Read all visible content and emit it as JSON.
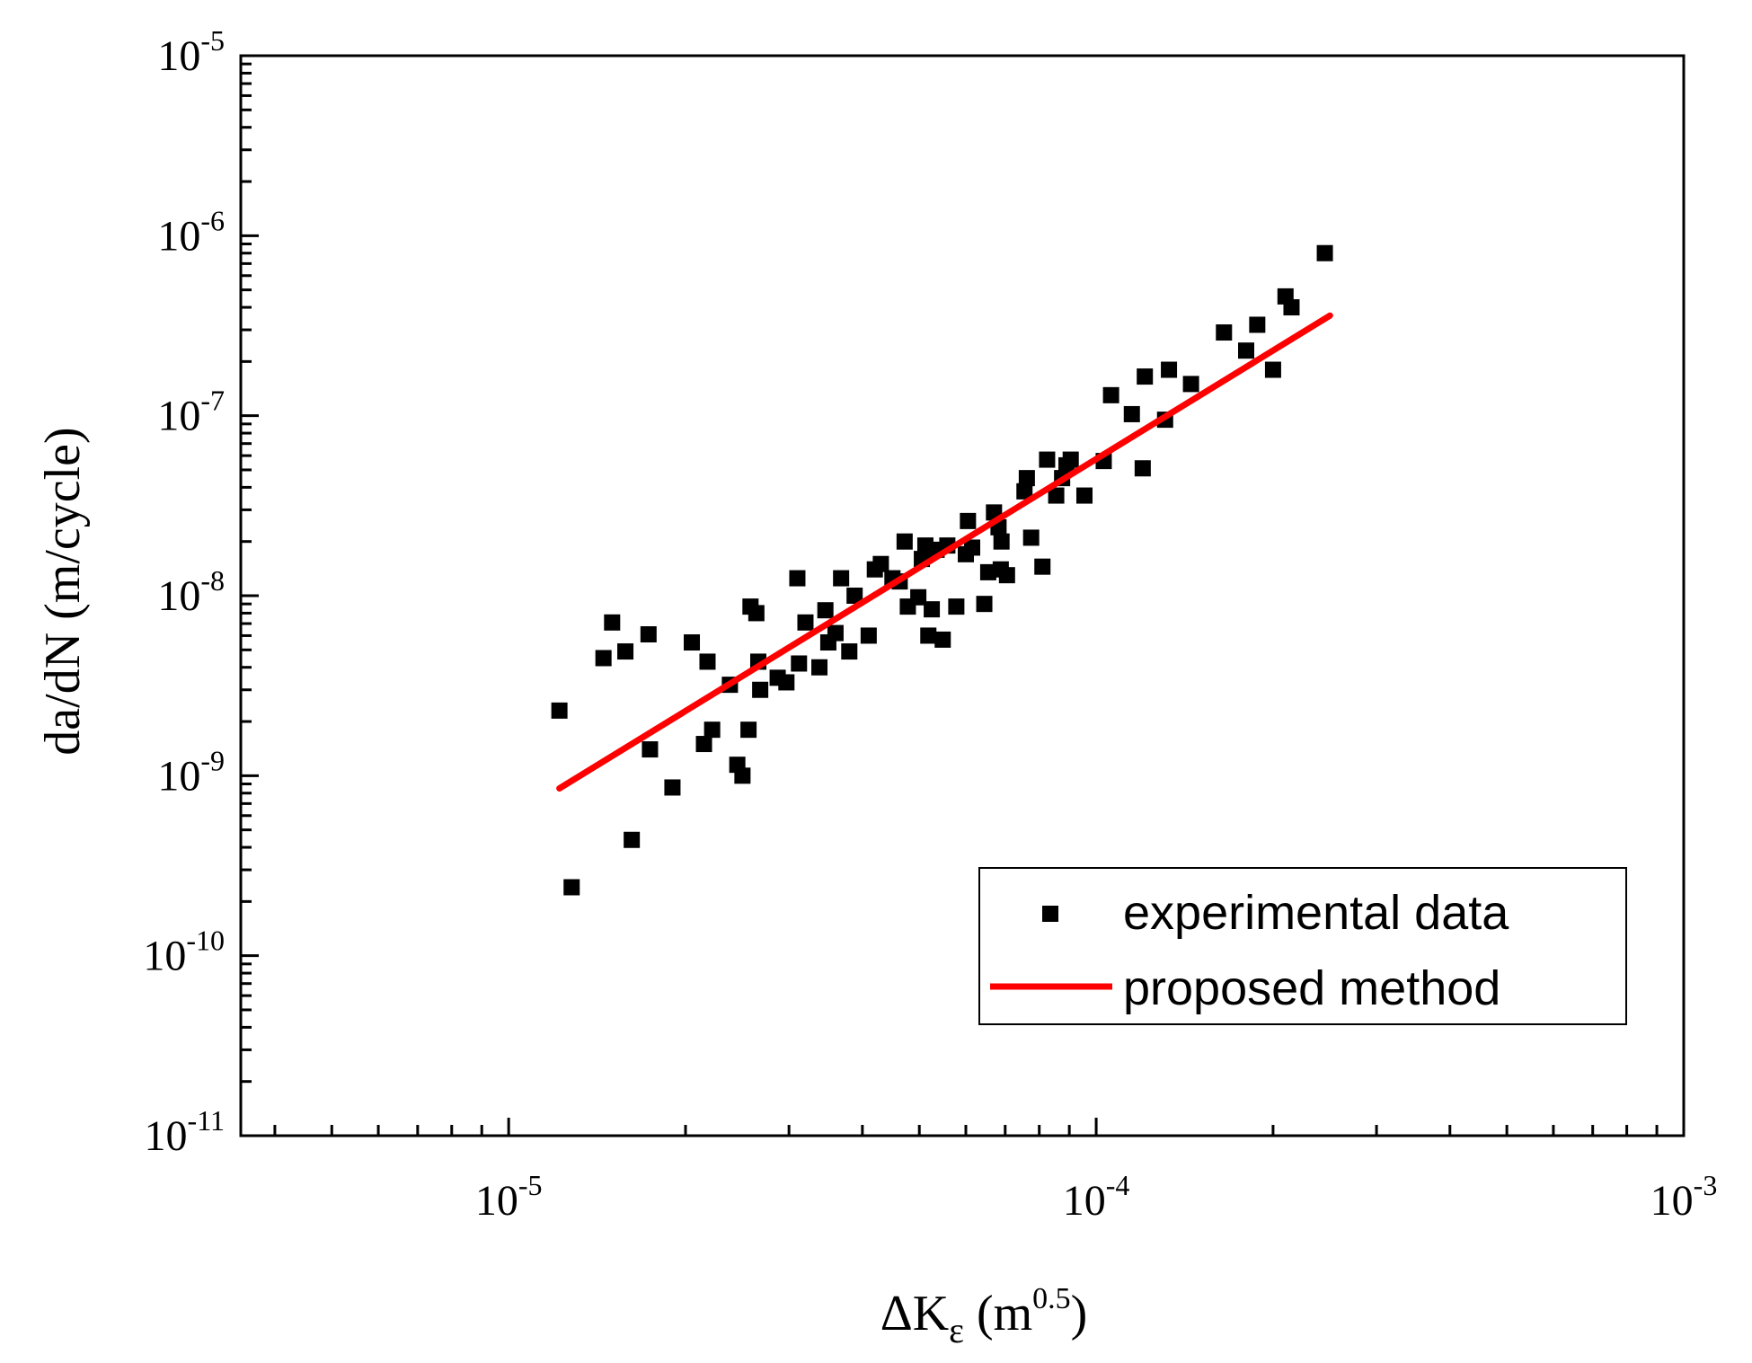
{
  "chart_data": {
    "type": "scatter",
    "title": "",
    "x_scale": "log",
    "y_scale": "log",
    "xlim": [
      3.5e-06,
      0.001
    ],
    "ylim": [
      1e-11,
      1e-05
    ],
    "xlabel": {
      "base": "ΔK",
      "subscript": "ε",
      "unit_open": " (m",
      "unit_sup": "0.5",
      "unit_close": ")"
    },
    "ylabel": "da/dN (m/cycle)",
    "x_ticks": [
      {
        "value": 1e-05,
        "base": "10",
        "exp": "-5"
      },
      {
        "value": 0.0001,
        "base": "10",
        "exp": "-4"
      },
      {
        "value": 0.001,
        "base": "10",
        "exp": "-3"
      }
    ],
    "y_ticks": [
      {
        "value": 1e-11,
        "base": "10",
        "exp": "-11"
      },
      {
        "value": 1e-10,
        "base": "10",
        "exp": "-10"
      },
      {
        "value": 1e-09,
        "base": "10",
        "exp": "-9"
      },
      {
        "value": 1e-08,
        "base": "10",
        "exp": "-8"
      },
      {
        "value": 1e-07,
        "base": "10",
        "exp": "-7"
      },
      {
        "value": 1e-06,
        "base": "10",
        "exp": "-6"
      },
      {
        "value": 1e-05,
        "base": "10",
        "exp": "-5"
      }
    ],
    "legend": {
      "position": "bottom-right",
      "entries": [
        {
          "label": "experimental data",
          "marker": "square",
          "color": "#000000"
        },
        {
          "label": "proposed method",
          "marker": "line",
          "color": "#ff0000"
        }
      ]
    },
    "series": [
      {
        "name": "experimental data",
        "kind": "scatter",
        "color": "#000000",
        "points": [
          [
            1.22e-05,
            2.3e-09
          ],
          [
            1.28e-05,
            2.4e-10
          ],
          [
            1.45e-05,
            4.5e-09
          ],
          [
            1.5e-05,
            7.1e-09
          ],
          [
            1.58e-05,
            4.9e-09
          ],
          [
            1.62e-05,
            4.4e-10
          ],
          [
            1.73e-05,
            6.1e-09
          ],
          [
            1.74e-05,
            1.4e-09
          ],
          [
            1.9e-05,
            8.6e-10
          ],
          [
            2.05e-05,
            5.5e-09
          ],
          [
            2.15e-05,
            1.5e-09
          ],
          [
            2.18e-05,
            4.3e-09
          ],
          [
            2.22e-05,
            1.8e-09
          ],
          [
            2.38e-05,
            3.2e-09
          ],
          [
            2.45e-05,
            1.15e-09
          ],
          [
            2.5e-05,
            1e-09
          ],
          [
            2.56e-05,
            1.8e-09
          ],
          [
            2.58e-05,
            8.7e-09
          ],
          [
            2.64e-05,
            8e-09
          ],
          [
            2.66e-05,
            4.3e-09
          ],
          [
            2.68e-05,
            3e-09
          ],
          [
            2.87e-05,
            3.5e-09
          ],
          [
            2.97e-05,
            3.3e-09
          ],
          [
            3.1e-05,
            1.25e-08
          ],
          [
            3.12e-05,
            4.2e-09
          ],
          [
            3.2e-05,
            7.1e-09
          ],
          [
            3.38e-05,
            4e-09
          ],
          [
            3.46e-05,
            8.3e-09
          ],
          [
            3.5e-05,
            5.5e-09
          ],
          [
            3.6e-05,
            6.2e-09
          ],
          [
            3.68e-05,
            1.25e-08
          ],
          [
            3.8e-05,
            4.9e-09
          ],
          [
            3.88e-05,
            1e-08
          ],
          [
            4.1e-05,
            6e-09
          ],
          [
            4.2e-05,
            1.4e-08
          ],
          [
            4.3e-05,
            1.5e-08
          ],
          [
            4.5e-05,
            1.25e-08
          ],
          [
            4.63e-05,
            1.2e-08
          ],
          [
            4.72e-05,
            2e-08
          ],
          [
            4.78e-05,
            8.7e-09
          ],
          [
            4.98e-05,
            9.8e-09
          ],
          [
            5.05e-05,
            1.6e-08
          ],
          [
            5.12e-05,
            1.9e-08
          ],
          [
            5.18e-05,
            6e-09
          ],
          [
            5.25e-05,
            8.4e-09
          ],
          [
            5.35e-05,
            1.8e-08
          ],
          [
            5.48e-05,
            5.7e-09
          ],
          [
            5.58e-05,
            1.9e-08
          ],
          [
            5.78e-05,
            8.7e-09
          ],
          [
            6e-05,
            1.7e-08
          ],
          [
            6.05e-05,
            2.6e-08
          ],
          [
            6.15e-05,
            1.85e-08
          ],
          [
            6.45e-05,
            9e-09
          ],
          [
            6.55e-05,
            1.35e-08
          ],
          [
            6.7e-05,
            2.9e-08
          ],
          [
            6.82e-05,
            2.4e-08
          ],
          [
            6.88e-05,
            1.4e-08
          ],
          [
            6.9e-05,
            2e-08
          ],
          [
            7.05e-05,
            1.3e-08
          ],
          [
            7.55e-05,
            3.8e-08
          ],
          [
            7.62e-05,
            4.5e-08
          ],
          [
            7.75e-05,
            2.1e-08
          ],
          [
            8.1e-05,
            1.45e-08
          ],
          [
            8.25e-05,
            5.7e-08
          ],
          [
            8.55e-05,
            3.6e-08
          ],
          [
            8.75e-05,
            4.5e-08
          ],
          [
            8.9e-05,
            5.3e-08
          ],
          [
            9.05e-05,
            5.7e-08
          ],
          [
            9.55e-05,
            3.6e-08
          ],
          [
            0.000103,
            5.6e-08
          ],
          [
            0.000106,
            1.3e-07
          ],
          [
            0.000115,
            1.02e-07
          ],
          [
            0.00012,
            5.1e-08
          ],
          [
            0.000121,
            1.65e-07
          ],
          [
            0.000131,
            9.5e-08
          ],
          [
            0.000133,
            1.8e-07
          ],
          [
            0.000145,
            1.5e-07
          ],
          [
            0.000165,
            2.9e-07
          ],
          [
            0.00018,
            2.3e-07
          ],
          [
            0.000188,
            3.2e-07
          ],
          [
            0.0002,
            1.8e-07
          ],
          [
            0.00021,
            4.6e-07
          ],
          [
            0.000215,
            4e-07
          ],
          [
            0.000245,
            8e-07
          ]
        ]
      },
      {
        "name": "proposed method",
        "kind": "line",
        "color": "#ff0000",
        "x": [
          1.22e-05,
          0.00025
        ],
        "y": [
          8.5e-10,
          3.6e-07
        ]
      }
    ]
  }
}
